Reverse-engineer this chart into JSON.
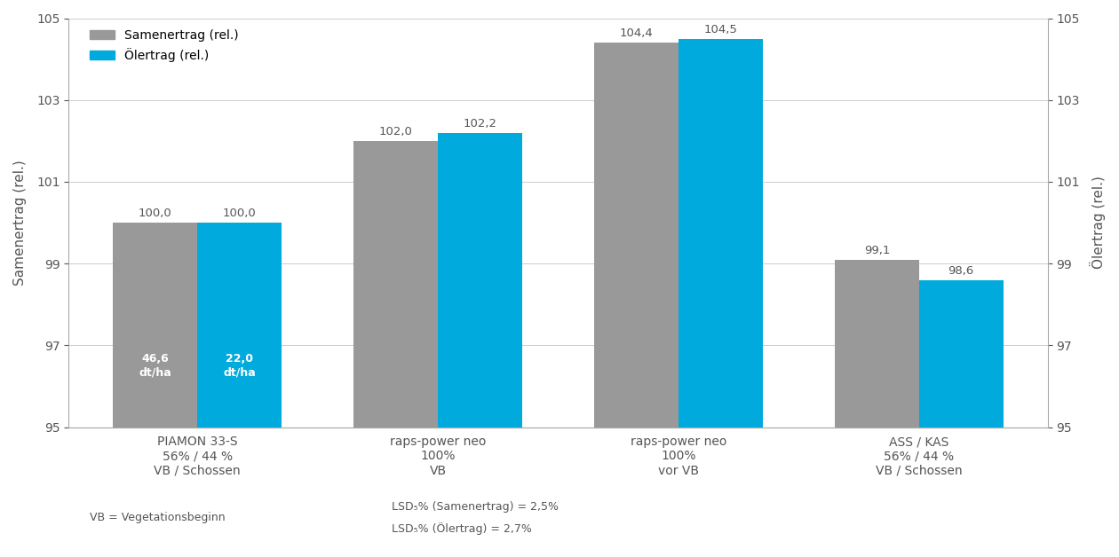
{
  "categories": [
    "PIAMON 33-S\n56% / 44 %\nVB / Schossen",
    "raps-power neo\n100%\nVB",
    "raps-power neo\n100%\nvor VB",
    "ASS / KAS\n56% / 44 %\nVB / Schossen"
  ],
  "samen_values": [
    100.0,
    102.0,
    104.4,
    99.1
  ],
  "oeler_values": [
    100.0,
    102.2,
    104.5,
    98.6
  ],
  "samen_color": "#999999",
  "oeler_color": "#00AADD",
  "bar_width": 0.35,
  "ylim": [
    95,
    105
  ],
  "yticks": [
    95,
    97,
    99,
    101,
    103,
    105
  ],
  "ylabel_left": "Samenertrag (rel.)",
  "ylabel_right": "Ölertrag (rel.)",
  "legend_samen": "Samenertrag (rel.)",
  "legend_oeler": "Ölertrag (rel.)",
  "inline_text_gray": [
    "46,6\ndt/ha",
    "22,0\ndt/ha"
  ],
  "vb_note": "VB = Vegetationsbeginn",
  "lsd_samen": "LSD₅% (Samenertrag) = 2,5%",
  "lsd_oeler": "LSD₅% (Ölertrag) = 2,7%",
  "background_color": "#ffffff",
  "text_color": "#555555",
  "title_fontsize": 13,
  "axis_fontsize": 11,
  "tick_fontsize": 10,
  "bar_label_fontsize": 9.5,
  "legend_fontsize": 10,
  "annotation_fontsize": 9
}
